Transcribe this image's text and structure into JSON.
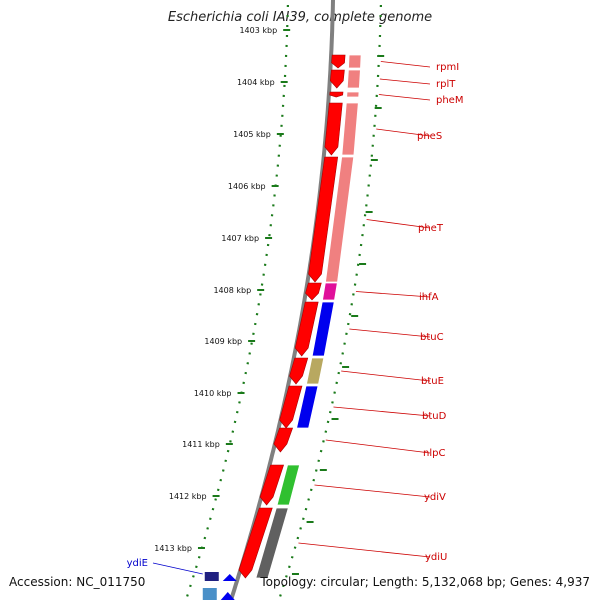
{
  "title": "Escherichia coli IAI39, complete genome",
  "accession": "Accession: NC_011750",
  "summary": "Topology: circular; Length: 5,132,068 bp; Genes: 4,937",
  "colors": {
    "backbone": "#808080",
    "gene_arrow": "#ff0000",
    "tick": "#1a7a1a",
    "label_red": "#cc0000",
    "label_blue": "#0000cc"
  },
  "ruler": {
    "labels": [
      "1403 kbp",
      "1404 kbp",
      "1405 kbp",
      "1406 kbp",
      "1407 kbp",
      "1408 kbp",
      "1409 kbp",
      "1410 kbp",
      "1411 kbp",
      "1412 kbp",
      "1413 kbp"
    ]
  },
  "genes": [
    {
      "name": "rpmI",
      "category_color": "#f08080"
    },
    {
      "name": "rplT",
      "category_color": "#f08080"
    },
    {
      "name": "pheM",
      "category_color": "#f08080"
    },
    {
      "name": "pheS",
      "category_color": "#f08080"
    },
    {
      "name": "pheT",
      "category_color": "#f08080"
    },
    {
      "name": "ihfA",
      "category_color": "#e0109a"
    },
    {
      "name": "btuC",
      "category_color": "#0000ee"
    },
    {
      "name": "btuE",
      "category_color": "#b8a860"
    },
    {
      "name": "btuD",
      "category_color": "#0000ee"
    },
    {
      "name": "nlpC",
      "category_color": "#ffffff"
    },
    {
      "name": "ydiV",
      "category_color": "#30c030"
    },
    {
      "name": "ydiU",
      "category_color": "#606060"
    },
    {
      "name": "ydiE",
      "category_color": "#202080"
    }
  ]
}
